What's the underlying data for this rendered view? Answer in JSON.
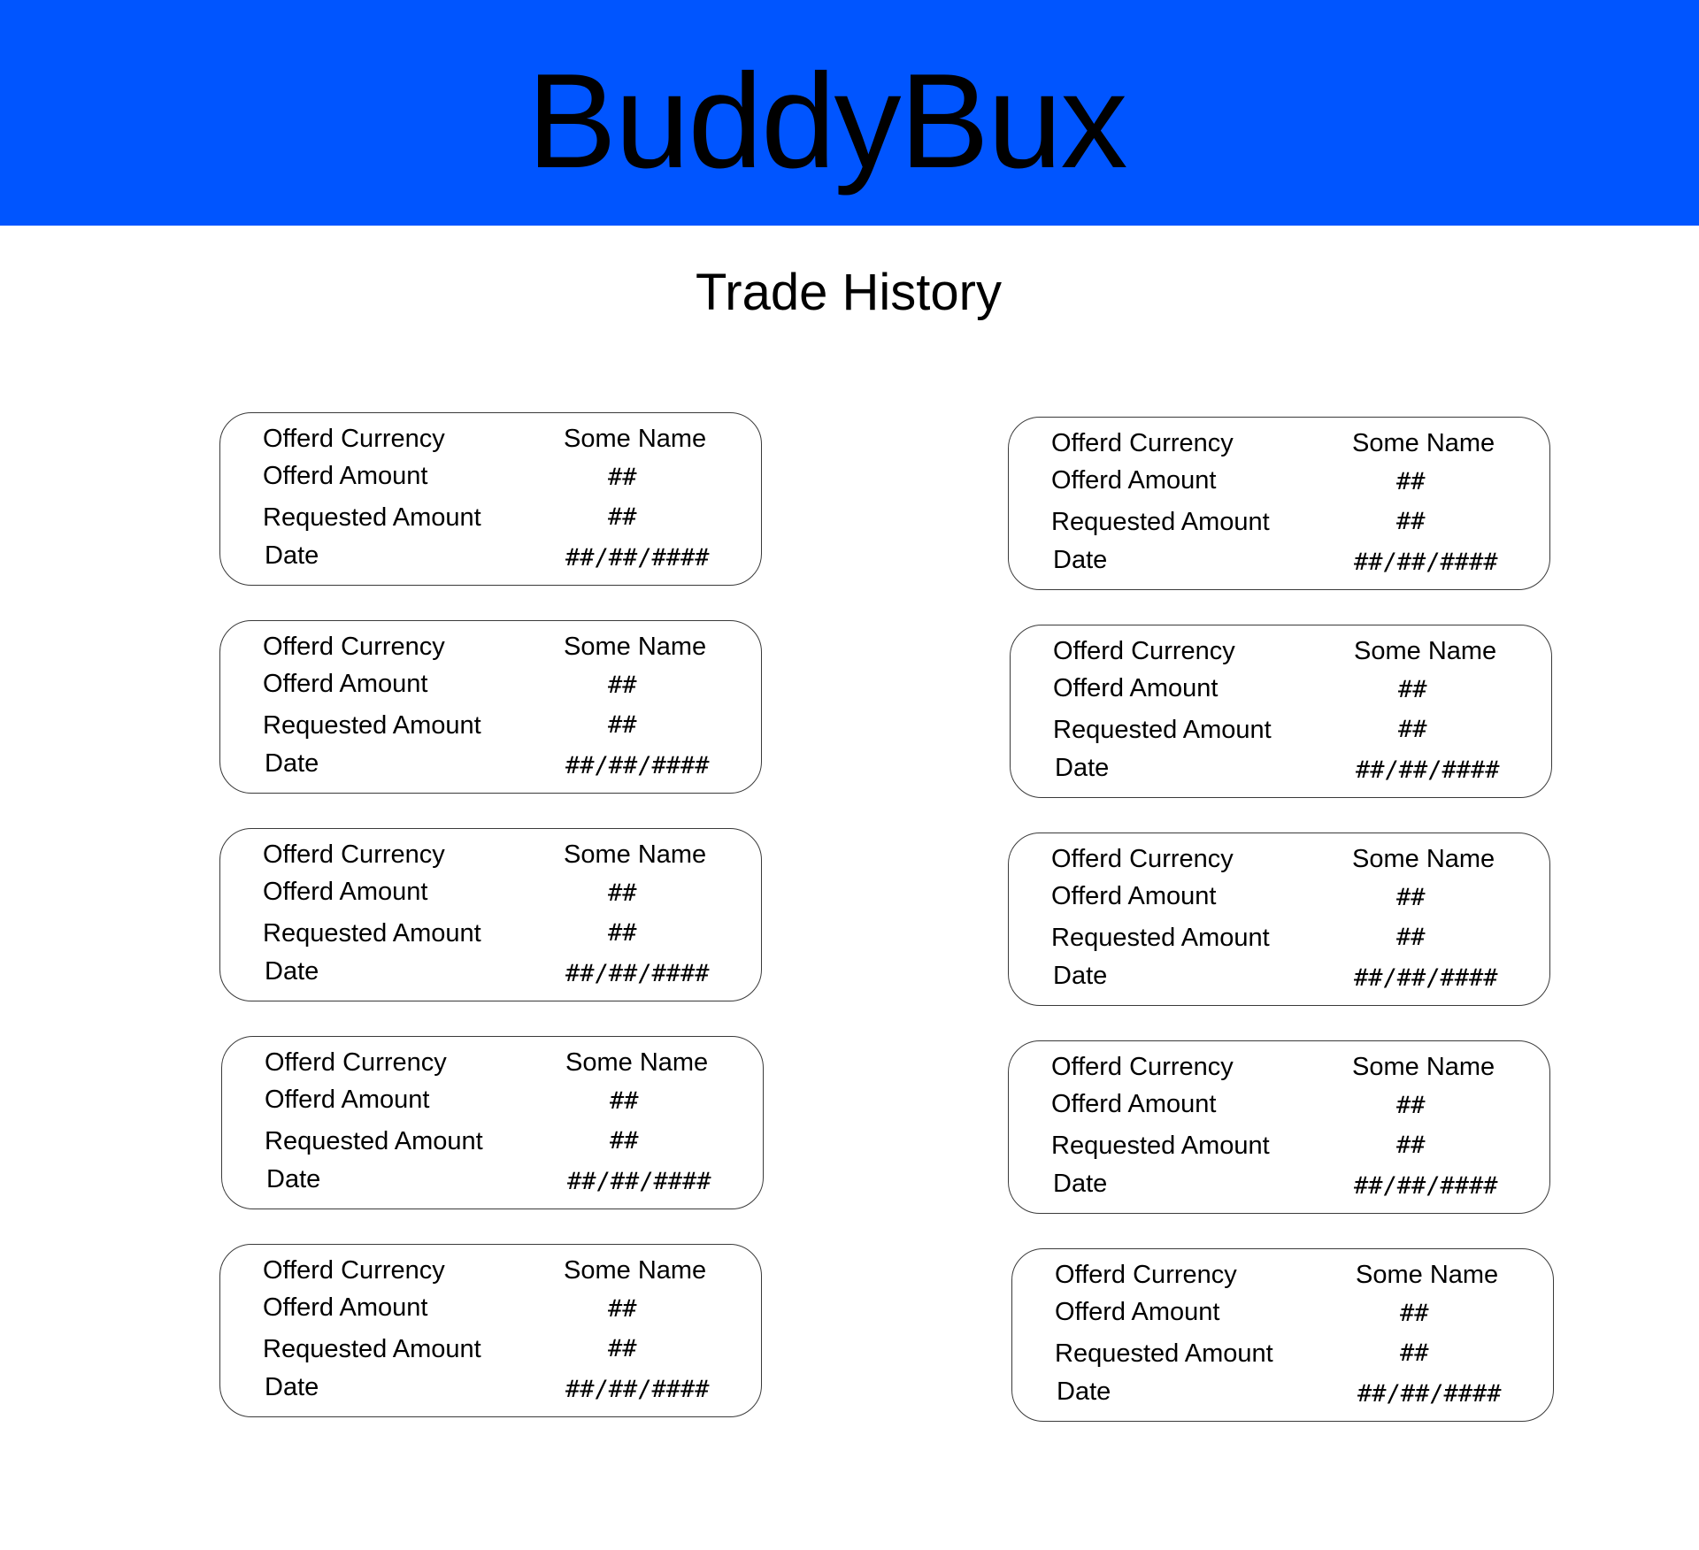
{
  "app": {
    "title": "BuddyBux",
    "accent_color": "#0055ff"
  },
  "page": {
    "title": "Trade History"
  },
  "labels": {
    "offered_currency": "Offerd Currency",
    "offered_amount": "Offerd Amount",
    "requested_amount": "Requested Amount",
    "date": "Date"
  },
  "trades": [
    {
      "currency": "Some Name",
      "offered_amount": "##",
      "requested_amount": "##",
      "date": "##/##/####"
    },
    {
      "currency": "Some Name",
      "offered_amount": "##",
      "requested_amount": "##",
      "date": "##/##/####"
    },
    {
      "currency": "Some Name",
      "offered_amount": "##",
      "requested_amount": "##",
      "date": "##/##/####"
    },
    {
      "currency": "Some Name",
      "offered_amount": "##",
      "requested_amount": "##",
      "date": "##/##/####"
    },
    {
      "currency": "Some Name",
      "offered_amount": "##",
      "requested_amount": "##",
      "date": "##/##/####"
    },
    {
      "currency": "Some Name",
      "offered_amount": "##",
      "requested_amount": "##",
      "date": "##/##/####"
    },
    {
      "currency": "Some Name",
      "offered_amount": "##",
      "requested_amount": "##",
      "date": "##/##/####"
    },
    {
      "currency": "Some Name",
      "offered_amount": "##",
      "requested_amount": "##",
      "date": "##/##/####"
    },
    {
      "currency": "Some Name",
      "offered_amount": "##",
      "requested_amount": "##",
      "date": "##/##/####"
    },
    {
      "currency": "Some Name",
      "offered_amount": "##",
      "requested_amount": "##",
      "date": "##/##/####"
    }
  ]
}
